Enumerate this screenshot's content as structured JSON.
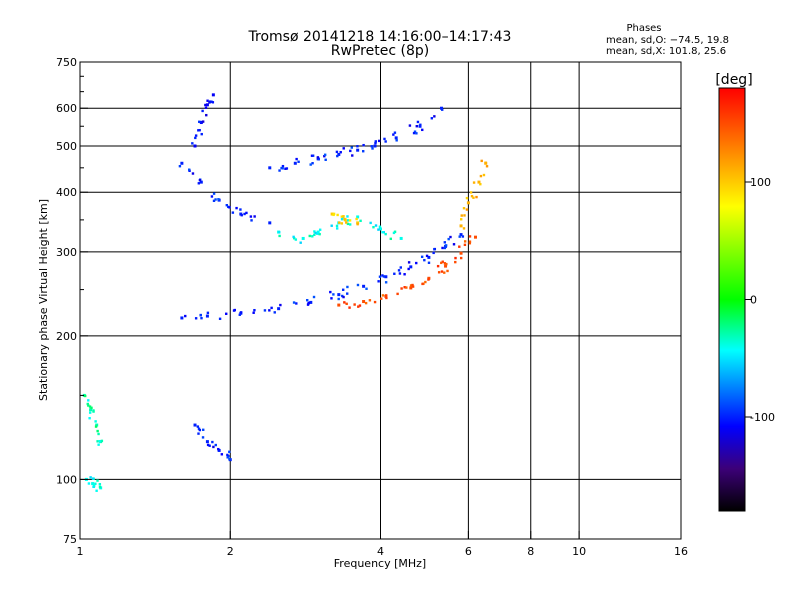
{
  "chart_data": {
    "type": "scatter",
    "title": "Tromsø 20141218 14:16:00–14:17:43",
    "subtitle": "RwPretec (8p)",
    "xlabel": "Frequency [MHz]",
    "ylabel": "Stationary phase Virtual Height [km]",
    "x_scale": "log",
    "y_scale": "log",
    "xlim": [
      1,
      16
    ],
    "ylim": [
      75,
      750
    ],
    "x_ticks": [
      1,
      2,
      4,
      6,
      8,
      10,
      16
    ],
    "y_ticks": [
      75,
      100,
      200,
      300,
      400,
      500,
      600,
      750
    ],
    "x_grid": [
      2,
      4,
      6,
      8,
      10
    ],
    "y_grid": [
      100,
      200,
      300,
      400,
      500,
      600
    ],
    "grid": true,
    "stats": {
      "heading": "Phases",
      "line_o": "mean, sd,O: −74.5, 19.8",
      "line_x": "mean, sd,X: 101.8, 25.6"
    },
    "colorbar": {
      "label": "[deg]",
      "range": [
        -180,
        180
      ],
      "ticks": [
        100,
        0,
        -100
      ],
      "colors": [
        "#ff0000",
        "#ff7f00",
        "#ffff00",
        "#00ff00",
        "#00ffff",
        "#0000ff",
        "#3c0078",
        "#000000"
      ]
    },
    "traces": [
      {
        "x": [
          1.6,
          1.8,
          2.1,
          2.5,
          2.9,
          3.3,
          3.7,
          4.1,
          4.6,
          5.0,
          5.4,
          5.8
        ],
        "y": [
          218,
          220,
          223,
          228,
          235,
          244,
          254,
          266,
          279,
          292,
          308,
          326
        ],
        "phase": -100
      },
      {
        "x": [
          3.3,
          3.7,
          4.1,
          4.6,
          5.0,
          5.4,
          5.8,
          6.2
        ],
        "y": [
          232,
          236,
          242,
          252,
          264,
          280,
          298,
          322
        ],
        "phase": 150
      },
      {
        "x": [
          1.6,
          1.75,
          1.9,
          2.1,
          2.4
        ],
        "y": [
          460,
          420,
          385,
          360,
          345
        ],
        "phase": -100
      },
      {
        "x": [
          2.5,
          2.8,
          3.0,
          3.3,
          3.6,
          4.0,
          4.4
        ],
        "y": [
          330,
          320,
          330,
          345,
          355,
          335,
          320
        ],
        "phase": -40
      },
      {
        "x": [
          3.2,
          3.4,
          3.6
        ],
        "y": [
          360,
          350,
          345
        ],
        "phase": 100
      },
      {
        "x": [
          2.4,
          2.7,
          3.0,
          3.3,
          3.6,
          3.9,
          4.3,
          4.8,
          5.3
        ],
        "y": [
          450,
          460,
          470,
          480,
          490,
          500,
          520,
          550,
          600
        ],
        "phase": -100
      },
      {
        "x": [
          5.8,
          6.0,
          6.3,
          6.5
        ],
        "y": [
          340,
          380,
          420,
          460
        ],
        "phase": 110
      },
      {
        "x": [
          1.7,
          1.75,
          1.8,
          1.85
        ],
        "y": [
          500,
          560,
          610,
          640
        ],
        "phase": -110
      },
      {
        "x": [
          1.02,
          1.05,
          1.08,
          1.1
        ],
        "y": [
          150,
          140,
          130,
          120
        ],
        "phase": -30
      },
      {
        "x": [
          1.7,
          1.8,
          1.9,
          2.0
        ],
        "y": [
          130,
          120,
          115,
          110
        ],
        "phase": -100
      },
      {
        "x": [
          1.03,
          1.06,
          1.1
        ],
        "y": [
          100,
          98,
          96
        ],
        "phase": -40
      }
    ]
  }
}
